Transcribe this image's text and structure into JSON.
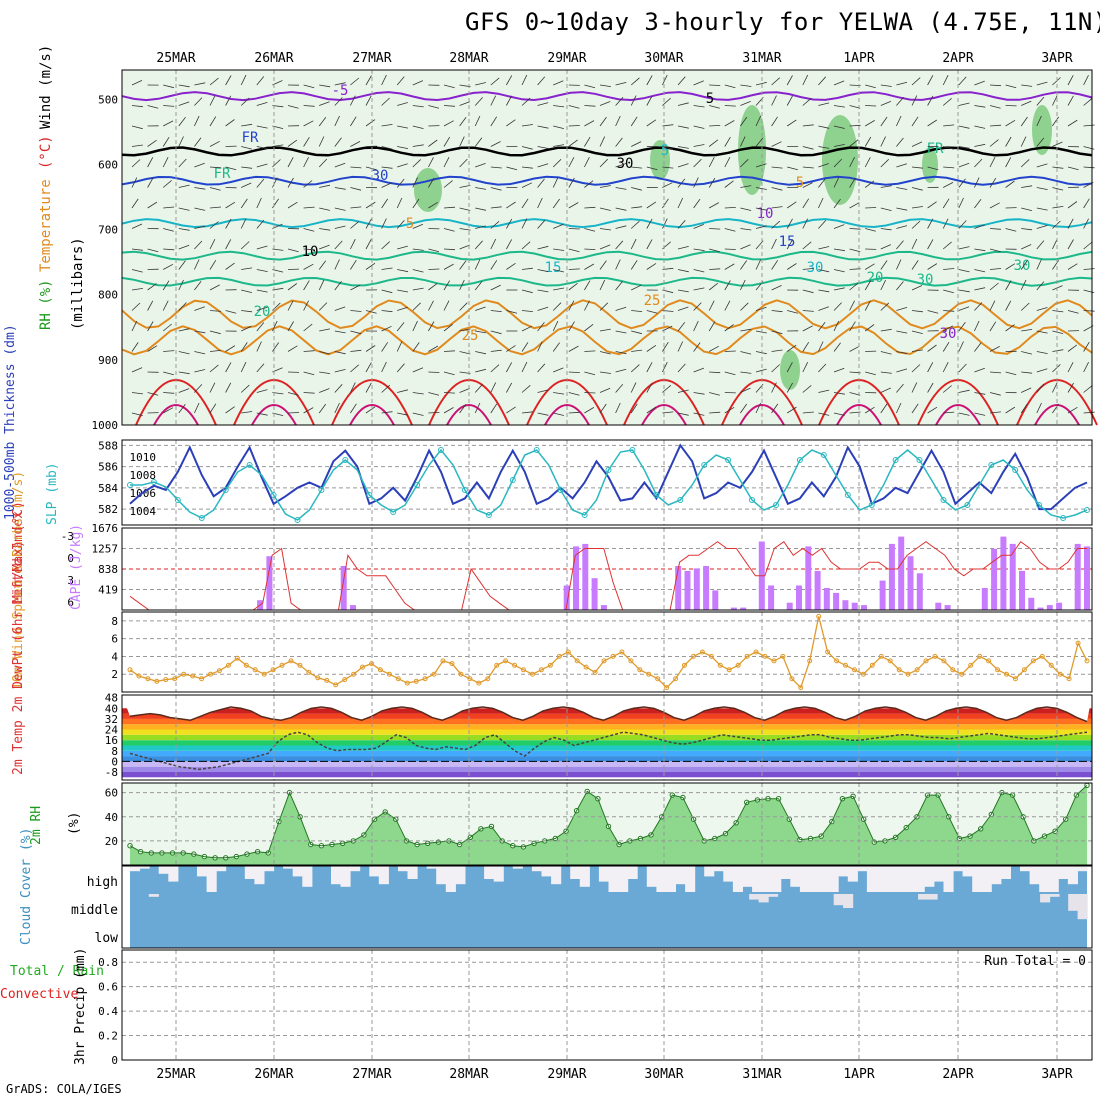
{
  "title": "GFS 0~10day 3-hourly for YELWA (4.75E, 11N)",
  "credit": "GrADS: COLA/IGES",
  "colors": {
    "gridline": "#999999",
    "panel_border": "#000000",
    "contour_red": "#dd2222",
    "contour_orange": "#e08a1e",
    "contour_teal": "#1cb88a",
    "contour_cyan": "#17b4c7",
    "contour_blue": "#2244cc",
    "contour_purple": "#8822cc",
    "rh_fill": "#78c878",
    "cape_bar": "#c77cff",
    "cloud_fill": "#6aa9d6",
    "thickness": "#2a3fb8",
    "slp": "#2ab8c0",
    "wind10": "#e09a2a"
  },
  "chart_data": [
    {
      "type": "heatmap",
      "panel": "upper-air",
      "ylabel_parts": [
        {
          "text": "RH (%)",
          "color": "#1a9a1a"
        },
        {
          "text": "Temperature",
          "color": "#e08a1e"
        },
        {
          "text": "(°C)",
          "color": "#dd2222"
        },
        {
          "text": "Wind (m/s)",
          "color": "#000000"
        }
      ],
      "ylabel2": "(millibars)",
      "y_ticks": [
        500,
        600,
        700,
        800,
        900,
        1000
      ],
      "ylim": [
        455,
        1000
      ],
      "x_categories": [
        "25MAR",
        "26MAR",
        "27MAR",
        "28MAR",
        "29MAR",
        "30MAR",
        "31MAR",
        "1APR",
        "2APR",
        "3APR"
      ],
      "contour_labels": [
        "-5",
        "5",
        "FR",
        "5",
        "FR",
        "FR",
        "5",
        "5",
        "10",
        "10",
        "15",
        "15",
        "20",
        "20",
        "25",
        "25",
        "30",
        "30",
        "30",
        "30",
        "30",
        "30"
      ],
      "temperature_levels": [
        {
          "label": "-5",
          "pressure": 495
        },
        {
          "label": "FR",
          "pressure": 580
        },
        {
          "label": "5",
          "pressure": 625
        },
        {
          "label": "10",
          "pressure": 690
        },
        {
          "label": "15",
          "pressure": 740
        },
        {
          "label": "20",
          "pressure": 780
        },
        {
          "label": "25",
          "pressure": 830
        },
        {
          "label": "30",
          "pressure": 870
        }
      ]
    },
    {
      "type": "line",
      "panel": "thickness-slp",
      "ylabel_left": "1000-500mb Thickness (dm)",
      "ylabel_right": "SLP (mb)",
      "y_ticks_left": [
        582,
        584,
        586,
        588
      ],
      "y_ticks_right": [
        1004,
        1006,
        1008,
        1010
      ],
      "ylim_left": [
        580.5,
        588.5
      ],
      "series": [
        {
          "name": "Thickness",
          "values": [
            582.5,
            583.5,
            584.2,
            583.8,
            585.5,
            587.8,
            585.2,
            583.2,
            584.0,
            586.0,
            587.8,
            585.0,
            582.5,
            583.2,
            584.0,
            584.5,
            584.0,
            586.5,
            587.5,
            586.0,
            582.5,
            583.0,
            584.0,
            582.8,
            585.0,
            587.5,
            585.5,
            582.5,
            583.0,
            584.5,
            583.0,
            585.5,
            587.5,
            585.5,
            582.5,
            583.0,
            584.0,
            583.0,
            584.5,
            586.5,
            585.0,
            582.8,
            583.0,
            584.5,
            583.0,
            585.5,
            588.0,
            586.5,
            583.0,
            583.5,
            584.5,
            584.0,
            585.5,
            587.5,
            585.0,
            582.5,
            583.0,
            584.5,
            583.2,
            585.0,
            587.8,
            586.0,
            582.5,
            583.0,
            584.0,
            583.5,
            585.5,
            587.5,
            585.5,
            582.5,
            583.5,
            584.5,
            583.5,
            585.5,
            587.2,
            585.0,
            582.0,
            582.0,
            583.0,
            584.0,
            584.5
          ]
        },
        {
          "name": "SLP",
          "values": [
            1006.5,
            1006.5,
            1006.8,
            1006.3,
            1005.0,
            1003.8,
            1003.2,
            1004.0,
            1006.0,
            1007.8,
            1008.5,
            1007.5,
            1005.5,
            1003.6,
            1003.0,
            1004.0,
            1006.0,
            1008.0,
            1009.0,
            1008.0,
            1005.5,
            1004.5,
            1003.8,
            1004.5,
            1006.5,
            1008.5,
            1010.0,
            1008.5,
            1006.0,
            1004.0,
            1003.5,
            1004.5,
            1007.0,
            1009.5,
            1010.0,
            1008.5,
            1006.0,
            1004.0,
            1003.5,
            1005.0,
            1008.0,
            1009.8,
            1010.0,
            1008.0,
            1005.5,
            1004.5,
            1005.0,
            1006.5,
            1008.5,
            1009.5,
            1009.0,
            1007.0,
            1005.0,
            1004.0,
            1004.5,
            1006.5,
            1009.0,
            1010.0,
            1009.5,
            1007.5,
            1005.5,
            1004.0,
            1004.5,
            1006.5,
            1009.0,
            1010.0,
            1009.0,
            1007.0,
            1005.0,
            1004.0,
            1004.5,
            1006.5,
            1008.5,
            1009.0,
            1008.0,
            1006.0,
            1004.5,
            1003.5,
            1003.2,
            1003.5,
            1004.0
          ]
        }
      ]
    },
    {
      "type": "bar",
      "panel": "cape-li",
      "ylabel_left": "Lifted Index",
      "ylabel_right": "CAPE (J/kg)",
      "y_ticks_left": [
        -3,
        0,
        3,
        6
      ],
      "y_ticks_right": [
        419,
        838,
        1257,
        1676
      ],
      "cape_ylim": [
        0,
        1676
      ],
      "cape_values": [
        0,
        0,
        0,
        0,
        0,
        0,
        0,
        0,
        0,
        0,
        0,
        0,
        0,
        0,
        200,
        1100,
        0,
        0,
        0,
        0,
        0,
        0,
        0,
        900,
        100,
        0,
        0,
        0,
        0,
        0,
        0,
        0,
        0,
        0,
        0,
        0,
        0,
        0,
        0,
        0,
        0,
        0,
        0,
        0,
        0,
        0,
        0,
        500,
        1300,
        1350,
        650,
        100,
        0,
        0,
        0,
        0,
        0,
        0,
        0,
        900,
        800,
        850,
        900,
        400,
        0,
        50,
        50,
        0,
        1400,
        500,
        0,
        150,
        500,
        1300,
        800,
        450,
        350,
        200,
        150,
        100,
        0,
        600,
        1350,
        1500,
        1100,
        750,
        0,
        150,
        100,
        0,
        0,
        0,
        450,
        1250,
        1500,
        1350,
        800,
        250,
        50,
        100,
        150,
        0,
        1350,
        1300
      ],
      "li_values": [
        4,
        5,
        6,
        6,
        6,
        6,
        6,
        6,
        6,
        6,
        6,
        6,
        6,
        6,
        5,
        -2,
        -3,
        5,
        6,
        6,
        6,
        6,
        6,
        -2,
        0,
        1,
        1,
        1,
        3,
        5,
        6,
        6,
        6,
        6,
        6,
        6,
        0,
        2,
        4,
        5,
        6,
        6,
        6,
        6,
        6,
        6,
        6,
        -2,
        -3,
        -3,
        -3,
        2,
        6,
        6,
        6,
        6,
        6,
        6,
        -1,
        -2,
        -2,
        -3,
        -4,
        -3,
        -3,
        -1,
        1,
        1,
        -3,
        -4,
        -2,
        -3,
        -2,
        -3,
        -1,
        0,
        0,
        0,
        -1,
        -1,
        0,
        0,
        -2,
        -3,
        -4,
        -3,
        -2,
        0,
        1,
        0,
        0,
        -1,
        -2,
        -2,
        -4,
        -3,
        -1,
        0,
        0,
        -1,
        -3,
        -3
      ]
    },
    {
      "type": "line",
      "panel": "wind10",
      "ylabel": "10m Wind Speed & Barbs (m/s)",
      "y_ticks": [
        2,
        4,
        6,
        8
      ],
      "ylim": [
        0,
        9
      ],
      "values": [
        2.5,
        1.8,
        1.5,
        1.2,
        1.4,
        1.5,
        2.0,
        1.8,
        1.5,
        2.0,
        2.4,
        3.0,
        3.8,
        3.0,
        2.5,
        2.0,
        2.5,
        3.0,
        3.5,
        3.0,
        2.2,
        1.6,
        1.3,
        0.8,
        1.4,
        2.0,
        2.8,
        3.2,
        2.5,
        2.0,
        1.5,
        1.0,
        1.2,
        1.5,
        2.0,
        3.5,
        3.2,
        2.0,
        1.5,
        1.0,
        1.5,
        3.0,
        3.5,
        3.0,
        2.5,
        2.0,
        2.5,
        3.0,
        4.0,
        4.5,
        3.5,
        2.8,
        2.2,
        3.5,
        4.0,
        4.5,
        3.5,
        2.5,
        2.0,
        1.5,
        0.5,
        1.5,
        3.0,
        4.0,
        4.5,
        4.0,
        3.0,
        2.5,
        3.0,
        4.0,
        4.5,
        4.0,
        3.5,
        4.0,
        1.5,
        0.5,
        3.5,
        8.5,
        4.5,
        3.5,
        3.0,
        2.5,
        2.0,
        3.0,
        4.0,
        3.5,
        2.5,
        2.0,
        2.5,
        3.5,
        4.0,
        3.5,
        2.5,
        2.0,
        3.0,
        4.0,
        3.5,
        2.5,
        2.0,
        1.5,
        2.5,
        3.5,
        4.0,
        3.0,
        2.0,
        1.5,
        5.5,
        3.5
      ]
    },
    {
      "type": "area",
      "panel": "t2m",
      "ylabel": "2m Temp 2m DewPt (6hr Min/Max) (°C)",
      "y_ticks": [
        -8,
        0,
        8,
        16,
        24,
        32,
        40,
        48
      ],
      "y_tick_labels": [
        "-8",
        "0",
        "8",
        "16",
        "24",
        "32",
        "40",
        "48"
      ],
      "ylim": [
        -14,
        50
      ],
      "temp_values": [
        34,
        35,
        36,
        35,
        33,
        32,
        31,
        34,
        37,
        39,
        41,
        40,
        38,
        34,
        32,
        31,
        33,
        37,
        40,
        41,
        40,
        37,
        33,
        31,
        34,
        38,
        40,
        41,
        40,
        37,
        33,
        31,
        34,
        38,
        40,
        41,
        40,
        37,
        33,
        31,
        34,
        38,
        40,
        41,
        40,
        37,
        33,
        31,
        34,
        38,
        40,
        41,
        40,
        37,
        33,
        31,
        34,
        38,
        40,
        41,
        40,
        37,
        33,
        31,
        34,
        38,
        40,
        41,
        40,
        37,
        33,
        31,
        34,
        38,
        40,
        41,
        40,
        37,
        33,
        31,
        34,
        38,
        40,
        41,
        40,
        37,
        33,
        31,
        33,
        37,
        40,
        41,
        40,
        37,
        33,
        30
      ],
      "dew_values": [
        6,
        4,
        2,
        0,
        -2,
        -4,
        -5,
        -6,
        -5,
        -4,
        -2,
        0,
        2,
        4,
        6,
        15,
        20,
        22,
        20,
        14,
        10,
        8,
        9,
        9,
        9,
        10,
        15,
        20,
        18,
        12,
        10,
        9,
        11,
        10,
        9,
        12,
        18,
        20,
        14,
        8,
        4,
        10,
        15,
        18,
        16,
        12,
        14,
        16,
        18,
        20,
        22,
        21,
        20,
        18,
        16,
        14,
        13,
        14,
        16,
        18,
        20,
        19,
        18,
        17,
        16,
        16,
        17,
        18,
        19,
        20,
        20,
        18,
        17,
        16,
        16,
        17,
        18,
        19,
        20,
        20,
        19,
        18,
        18,
        17,
        18,
        19,
        20,
        21,
        20,
        19,
        18,
        17,
        17,
        18,
        19,
        20,
        21,
        22
      ]
    },
    {
      "type": "area",
      "panel": "rh2m",
      "ylabel": "2m RH",
      "ylabel_unit": "(%)",
      "y_ticks": [
        20,
        40,
        60
      ],
      "ylim": [
        0,
        68
      ],
      "values": [
        16,
        11,
        10,
        10,
        10,
        10,
        9,
        7,
        6,
        6,
        7,
        9,
        11,
        10,
        36,
        60,
        40,
        17,
        16,
        17,
        18,
        20,
        25,
        38,
        44,
        38,
        20,
        17,
        18,
        19,
        20,
        17,
        23,
        30,
        32,
        20,
        16,
        15,
        18,
        20,
        22,
        28,
        45,
        61,
        55,
        32,
        17,
        20,
        22,
        25,
        40,
        58,
        56,
        38,
        20,
        22,
        26,
        35,
        52,
        54,
        55,
        55,
        38,
        21,
        22,
        24,
        36,
        55,
        57,
        38,
        19,
        20,
        23,
        31,
        40,
        58,
        58,
        40,
        22,
        24,
        30,
        42,
        60,
        58,
        40,
        20,
        24,
        28,
        38,
        58,
        66
      ],
      "all_labels": [
        "-5",
        "5",
        "FR",
        "5",
        "FR",
        "FR",
        "5",
        "5",
        "10",
        "10",
        "15",
        "15",
        "20",
        "20",
        "25",
        "25",
        "30",
        "30",
        "30",
        "30",
        "30",
        "30"
      ]
    },
    {
      "type": "bar",
      "panel": "cloud",
      "ylabel": "Cloud Cover (%)",
      "tick_labels": [
        "high",
        "middle",
        "low"
      ],
      "high_values": [
        0.8,
        0.9,
        1.0,
        0.7,
        0.4,
        1.0,
        1.0,
        0.6,
        0.0,
        0.8,
        1.0,
        1.0,
        0.5,
        0.3,
        0.8,
        1.0,
        0.9,
        0.6,
        0.2,
        1.0,
        1.0,
        0.3,
        0.2,
        0.8,
        1.0,
        0.6,
        0.3,
        1.0,
        0.8,
        0.5,
        1.0,
        0.9,
        0.3,
        0.0,
        0.3,
        1.0,
        1.0,
        0.5,
        0.4,
        1.0,
        0.9,
        1.0,
        0.8,
        0.6,
        0.3,
        1.0,
        0.5,
        0.2,
        1.0,
        0.4,
        0.0,
        0.0,
        0.5,
        1.0,
        0.2,
        0.0,
        0.0,
        0.3,
        0.0,
        1.0,
        0.6,
        0.8,
        0.4,
        0.0,
        0.2,
        0.0,
        0.0,
        0.0,
        0.5,
        0.2,
        0.0,
        0.0,
        0.0,
        0.0,
        0.6,
        0.4,
        0.8,
        0.0,
        0.0,
        0.0,
        0.0,
        0.0,
        0.0,
        0.2,
        0.4,
        0.0,
        0.8,
        0.6,
        0.0,
        0.0,
        0.3,
        0.5,
        1.0,
        0.8,
        0.3,
        0.0,
        0.0,
        0.5,
        0.3,
        0.8
      ],
      "mid_values": [
        0,
        0,
        0.1,
        0,
        0,
        0,
        0,
        0,
        0,
        0,
        0,
        0,
        0,
        0,
        0,
        0,
        0,
        0,
        0,
        0,
        0,
        0,
        0,
        0,
        0,
        0,
        0,
        0,
        0,
        0,
        0,
        0,
        0,
        0,
        0,
        0,
        0,
        0,
        0,
        0,
        0,
        0,
        0,
        0,
        0,
        0,
        0,
        0,
        0,
        0,
        0,
        0,
        0,
        0,
        0,
        0,
        0,
        0,
        0,
        0,
        0,
        0,
        0,
        0,
        0,
        0,
        0.2,
        0.3,
        0.1,
        0,
        0,
        0,
        0,
        0,
        0,
        0.4,
        0.5,
        0,
        0,
        0,
        0,
        0,
        0,
        0,
        0.2,
        0.2,
        0,
        0,
        0,
        0,
        0,
        0,
        0,
        0,
        0,
        0,
        0,
        0.3,
        0.1,
        0,
        0.6,
        0.9
      ]
    },
    {
      "type": "bar",
      "panel": "precip",
      "ylabel_parts": [
        {
          "text": "Total / Rain",
          "color": "#22aa22"
        },
        {
          "text": "Convective",
          "color": "#dd2222"
        },
        {
          "text": "3hr Precip (mm)",
          "color": "#000000"
        }
      ],
      "y_ticks": [
        0,
        0.2,
        0.4,
        0.6,
        0.8
      ],
      "y_tick_labels": [
        "0",
        "0.2",
        "0.4",
        "0.6",
        "0.8"
      ],
      "ylim": [
        0,
        0.9
      ],
      "run_total_label": "Run Total = 0",
      "x_categories": [
        "25MAR",
        "26MAR",
        "27MAR",
        "28MAR",
        "29MAR",
        "30MAR",
        "31MAR",
        "1APR",
        "2APR",
        "3APR"
      ]
    }
  ]
}
